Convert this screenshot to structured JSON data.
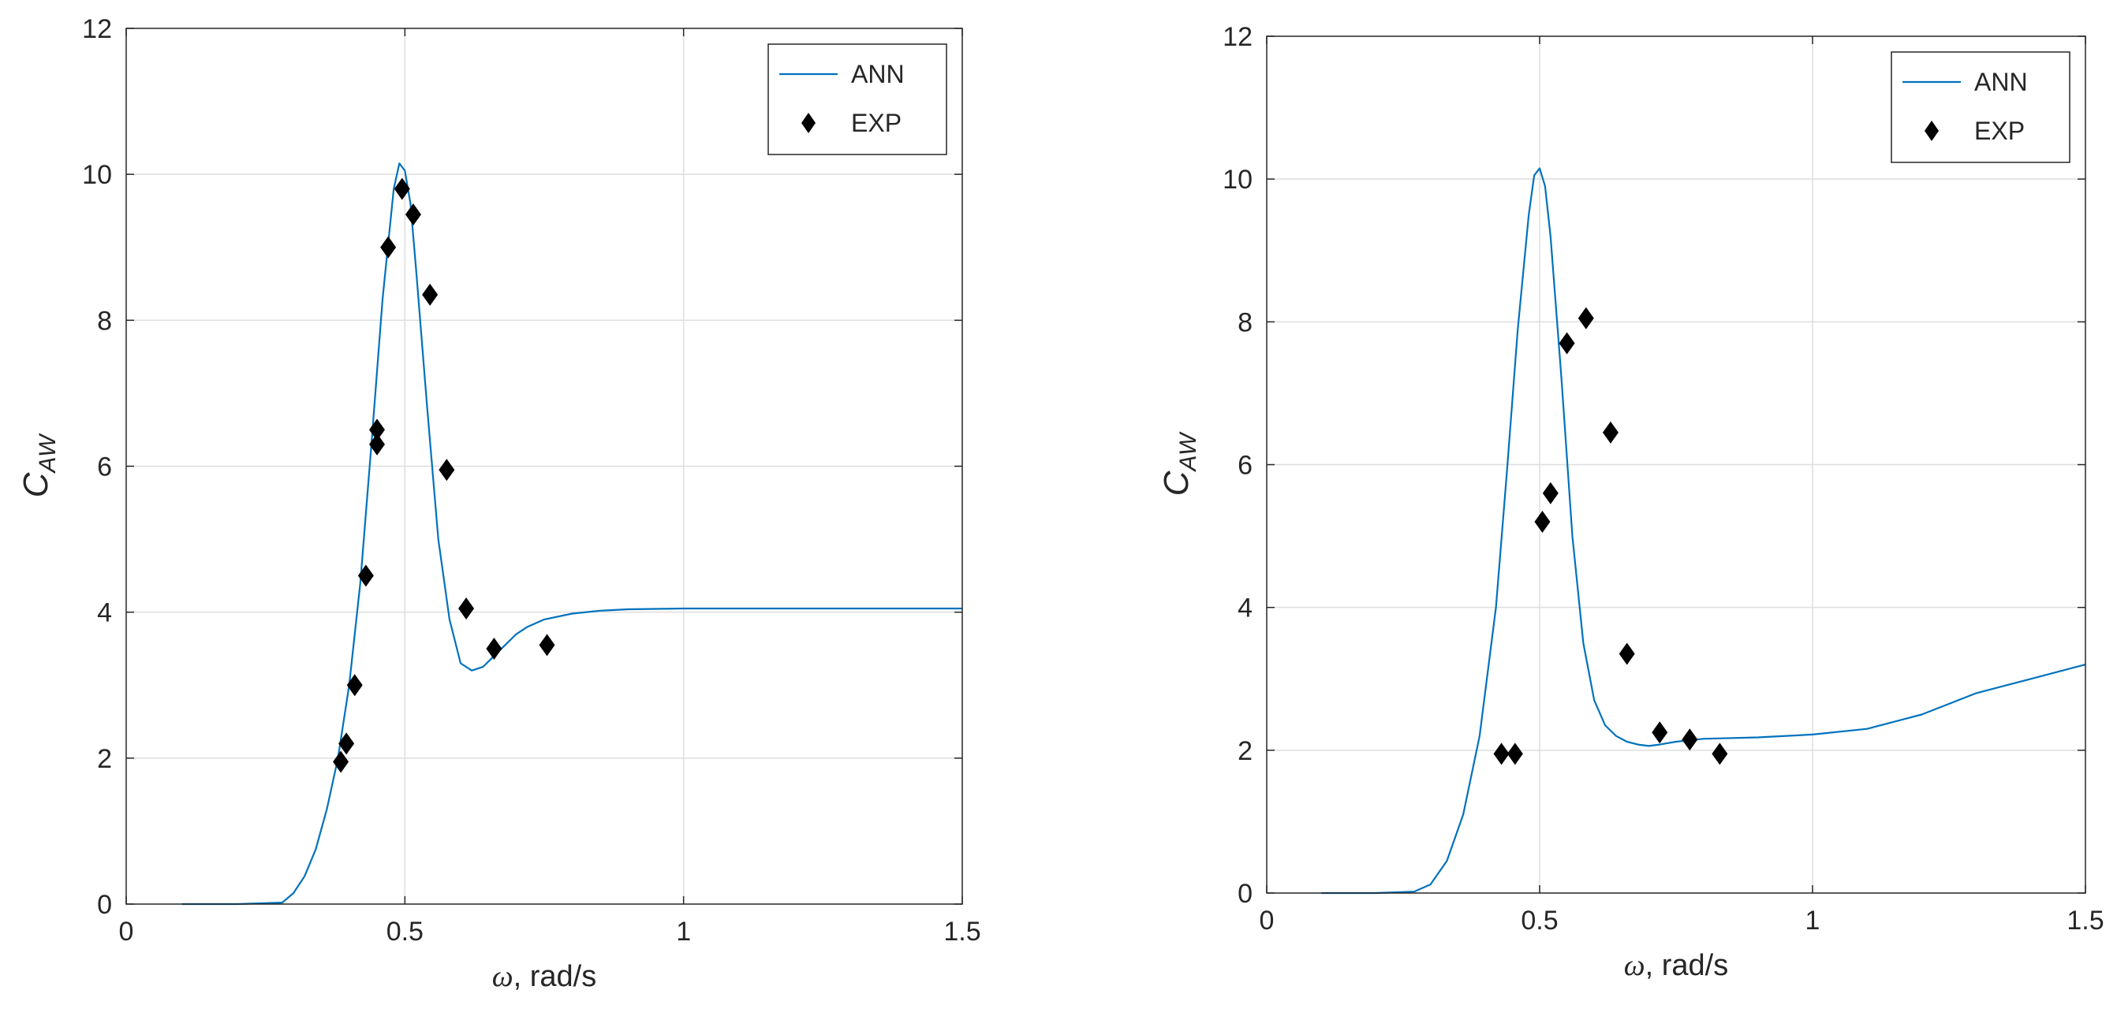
{
  "chart_data": [
    {
      "type": "line+scatter",
      "xlabel": {
        "symbol": "ω",
        "text": ", rad/s"
      },
      "ylabel": {
        "base": "C",
        "sub": "AW"
      },
      "xlim": [
        0,
        1.5
      ],
      "ylim": [
        0,
        12
      ],
      "xticks": [
        0,
        0.5,
        1,
        1.5
      ],
      "xtick_labels": [
        "0",
        "0.5",
        "1",
        "1.5"
      ],
      "yticks": [
        0,
        2,
        4,
        6,
        8,
        10,
        12
      ],
      "ytick_labels": [
        "0",
        "2",
        "4",
        "6",
        "8",
        "10",
        "12"
      ],
      "grid": true,
      "legend_position": "top-right",
      "series": [
        {
          "name": "ANN",
          "kind": "line",
          "color": "#0072BD",
          "x": [
            0.1,
            0.2,
            0.28,
            0.3,
            0.32,
            0.34,
            0.36,
            0.38,
            0.4,
            0.42,
            0.44,
            0.46,
            0.48,
            0.49,
            0.5,
            0.51,
            0.52,
            0.54,
            0.56,
            0.58,
            0.6,
            0.62,
            0.64,
            0.66,
            0.68,
            0.7,
            0.72,
            0.75,
            0.8,
            0.85,
            0.9,
            1.0,
            1.2,
            1.5
          ],
          "y": [
            0.0,
            0.0,
            0.02,
            0.15,
            0.38,
            0.75,
            1.3,
            2.0,
            3.0,
            4.4,
            6.3,
            8.3,
            9.8,
            10.15,
            10.05,
            9.6,
            8.7,
            6.8,
            5.0,
            3.9,
            3.3,
            3.2,
            3.25,
            3.4,
            3.55,
            3.7,
            3.8,
            3.9,
            3.98,
            4.02,
            4.04,
            4.05,
            4.05,
            4.05
          ]
        },
        {
          "name": "EXP",
          "kind": "scatter",
          "color": "#000000",
          "marker": "diamond",
          "x": [
            0.385,
            0.395,
            0.41,
            0.43,
            0.45,
            0.45,
            0.47,
            0.495,
            0.515,
            0.545,
            0.575,
            0.61,
            0.66,
            0.755
          ],
          "y": [
            1.95,
            2.2,
            3.0,
            4.5,
            6.3,
            6.5,
            9.0,
            9.8,
            9.45,
            8.35,
            5.95,
            4.05,
            3.5,
            3.55
          ]
        }
      ]
    },
    {
      "type": "line+scatter",
      "xlabel": {
        "symbol": "ω",
        "text": ", rad/s"
      },
      "ylabel": {
        "base": "C",
        "sub": "AW"
      },
      "xlim": [
        0,
        1.5
      ],
      "ylim": [
        0,
        12
      ],
      "xticks": [
        0,
        0.5,
        1,
        1.5
      ],
      "xtick_labels": [
        "0",
        "0.5",
        "1",
        "1.5"
      ],
      "yticks": [
        0,
        2,
        4,
        6,
        8,
        10,
        12
      ],
      "ytick_labels": [
        "0",
        "2",
        "4",
        "6",
        "8",
        "10",
        "12"
      ],
      "grid": true,
      "legend_position": "top-right",
      "series": [
        {
          "name": "ANN",
          "kind": "line",
          "color": "#0072BD",
          "x": [
            0.1,
            0.2,
            0.27,
            0.3,
            0.33,
            0.36,
            0.39,
            0.42,
            0.44,
            0.46,
            0.48,
            0.49,
            0.5,
            0.51,
            0.52,
            0.54,
            0.56,
            0.58,
            0.6,
            0.62,
            0.64,
            0.66,
            0.68,
            0.7,
            0.72,
            0.75,
            0.8,
            0.9,
            1.0,
            1.1,
            1.2,
            1.3,
            1.4,
            1.5
          ],
          "y": [
            0.0,
            0.0,
            0.02,
            0.12,
            0.45,
            1.1,
            2.2,
            4.0,
            5.9,
            7.9,
            9.5,
            10.05,
            10.15,
            9.9,
            9.2,
            7.2,
            5.0,
            3.5,
            2.7,
            2.35,
            2.2,
            2.12,
            2.08,
            2.06,
            2.08,
            2.12,
            2.16,
            2.18,
            2.22,
            2.3,
            2.5,
            2.8,
            3.0,
            3.2
          ]
        },
        {
          "name": "EXP",
          "kind": "scatter",
          "color": "#000000",
          "marker": "diamond",
          "x": [
            0.43,
            0.455,
            0.505,
            0.52,
            0.55,
            0.585,
            0.63,
            0.66,
            0.72,
            0.775,
            0.83
          ],
          "y": [
            1.95,
            1.95,
            5.2,
            5.6,
            7.7,
            8.05,
            6.45,
            3.35,
            2.25,
            2.15,
            1.95
          ]
        }
      ]
    }
  ]
}
